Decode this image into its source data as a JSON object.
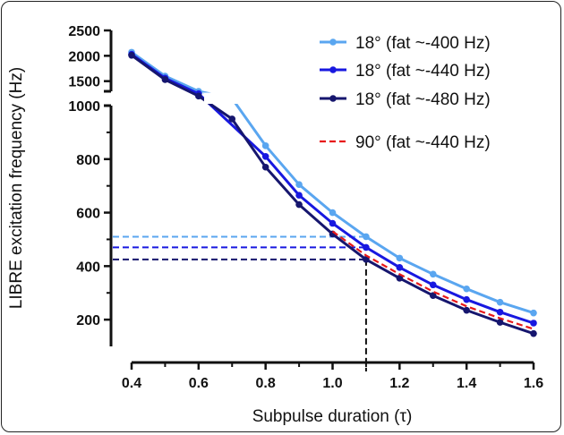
{
  "chart_data": {
    "type": "line",
    "title": "",
    "xlabel": "Subpulse duration (τ)",
    "ylabel": "LIBRE excitation frequency (Hz)",
    "xlim": [
      0.4,
      1.6
    ],
    "x_ticks": [
      "0.4",
      "0.6",
      "0.8",
      "1.0",
      "1.2",
      "1.4",
      "1.6"
    ],
    "y_ticks_lower": [
      "200",
      "400",
      "600",
      "800",
      "1000"
    ],
    "y_ticks_upper": [
      "1500",
      "2000",
      "2500"
    ],
    "y_axis_break": [
      1000,
      1300
    ],
    "ylim_lower": [
      100,
      1000
    ],
    "ylim_upper": [
      1300,
      2500
    ],
    "legend_position": "top-right",
    "series": [
      {
        "name": "18° (fat ~-400 Hz)",
        "color": "#5aa6f0",
        "style": "solid-markers",
        "x": [
          0.4,
          0.5,
          0.6,
          0.7,
          0.8,
          0.9,
          1.0,
          1.1,
          1.2,
          1.3,
          1.4,
          1.5,
          1.6
        ],
        "y": [
          2070,
          1600,
          1300,
          1150,
          850,
          705,
          600,
          510,
          430,
          370,
          315,
          265,
          225
        ]
      },
      {
        "name": "18° (fat ~-440 Hz)",
        "color": "#1818e0",
        "style": "solid-markers",
        "x": [
          0.4,
          0.5,
          0.6,
          0.8,
          0.9,
          1.0,
          1.1,
          1.2,
          1.3,
          1.4,
          1.5,
          1.6
        ],
        "y": [
          2030,
          1560,
          1250,
          810,
          665,
          560,
          470,
          395,
          330,
          275,
          228,
          187
        ]
      },
      {
        "name": "18° (fat ~-480 Hz)",
        "color": "#16166e",
        "style": "solid-markers",
        "x": [
          0.4,
          0.5,
          0.6,
          0.7,
          0.8,
          0.9,
          1.0,
          1.1,
          1.2,
          1.3,
          1.4,
          1.5,
          1.6
        ],
        "y": [
          2010,
          1530,
          1200,
          950,
          770,
          630,
          520,
          425,
          355,
          290,
          235,
          190,
          148
        ]
      },
      {
        "name": "90° (fat ~-440 Hz)",
        "color": "#e81818",
        "style": "dashed",
        "x": [
          1.0,
          1.1,
          1.2,
          1.3,
          1.4,
          1.5,
          1.6
        ],
        "y": [
          530,
          440,
          370,
          305,
          250,
          205,
          165
        ]
      }
    ],
    "reference_lines": [
      {
        "y": 510,
        "color": "#5aa6f0",
        "x_end": 1.1
      },
      {
        "y": 470,
        "color": "#1818e0",
        "x_end": 1.1
      },
      {
        "y": 425,
        "color": "#16166e",
        "x_end": 1.1
      },
      {
        "x": 1.1,
        "color": "#111111",
        "y_from": 100,
        "y_to": 425
      }
    ]
  }
}
